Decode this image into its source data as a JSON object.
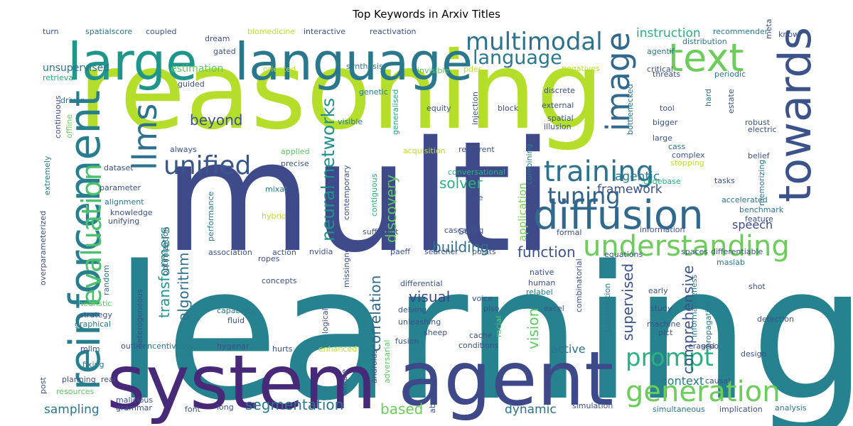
{
  "title": "Top Keywords in Arxiv Titles",
  "words": [
    {
      "text": "reasoning",
      "color": "#b5de2b"
    },
    {
      "text": "multi",
      "color": "#3e4a89"
    },
    {
      "text": "learning",
      "color": "#26828e"
    },
    {
      "text": "system",
      "color": "#482878"
    },
    {
      "text": "agent",
      "color": "#3e4989"
    },
    {
      "text": "large",
      "color": "#1f968b"
    },
    {
      "text": "language",
      "color": "#2a788e"
    },
    {
      "text": "reinforcement",
      "color": "#277f8e"
    },
    {
      "text": "towards",
      "color": "#3b528b"
    },
    {
      "text": "diffusion",
      "color": "#31688e"
    },
    {
      "text": "text",
      "color": "#6ccd5a"
    },
    {
      "text": "image",
      "color": "#31688e"
    },
    {
      "text": "llms",
      "color": "#2c728e"
    },
    {
      "text": "evaluation",
      "color": "#4ac16d"
    },
    {
      "text": "training",
      "color": "#2c728e"
    },
    {
      "text": "unified",
      "color": "#39568c"
    },
    {
      "text": "understanding",
      "color": "#6ccd5a"
    },
    {
      "text": "generation",
      "color": "#6ccd5a"
    },
    {
      "text": "multimodal",
      "color": "#2c728e"
    },
    {
      "text": "language",
      "color": "#2a788e"
    },
    {
      "text": "tuning",
      "color": "#33638d"
    },
    {
      "text": "prompt",
      "color": "#2ab07f"
    },
    {
      "text": "neural networks",
      "color": "#21918c"
    },
    {
      "text": "discovery",
      "color": "#5ec962"
    },
    {
      "text": "transformers",
      "color": "#1f968b"
    },
    {
      "text": "algorithm",
      "color": "#2c728e"
    },
    {
      "text": "correlation",
      "color": "#31688e"
    },
    {
      "text": "comprehensive",
      "color": "#3b528b"
    },
    {
      "text": "supervised",
      "color": "#3b528b"
    },
    {
      "text": "segmentation",
      "color": "#2a788e"
    },
    {
      "text": "visual",
      "color": "#3f4788"
    },
    {
      "text": "building",
      "color": "#2c728e"
    },
    {
      "text": "function",
      "color": "#3b528b"
    },
    {
      "text": "framework",
      "color": "#3b528b"
    },
    {
      "text": "agentic",
      "color": "#287d8e"
    },
    {
      "text": "solver",
      "color": "#2ab07f"
    },
    {
      "text": "beyond",
      "color": "#3b528b"
    },
    {
      "text": "vision",
      "color": "#5ec962"
    },
    {
      "text": "instruction",
      "color": "#2ab07f"
    },
    {
      "text": "sampling",
      "color": "#2a788e"
    },
    {
      "text": "based",
      "color": "#6ccd5a"
    },
    {
      "text": "dynamic",
      "color": "#2c728e"
    },
    {
      "text": "context",
      "color": "#2a788e"
    },
    {
      "text": "speech",
      "color": "#3e4989"
    },
    {
      "text": "active",
      "color": "#2c728e"
    },
    {
      "text": "self",
      "color": "#3b528b"
    },
    {
      "text": "application",
      "color": "#7ad151"
    },
    {
      "text": "unsupervised",
      "color": "#2c728e"
    },
    {
      "text": "estimation",
      "color": "#5ec962"
    },
    {
      "text": "spatialscore",
      "color": "#2a788e"
    },
    {
      "text": "coupled",
      "color": "#39568c"
    },
    {
      "text": "turn",
      "color": "#3b528b"
    },
    {
      "text": "retrieval",
      "color": "#22a884"
    },
    {
      "text": "driven",
      "color": "#2a788e"
    },
    {
      "text": "continuous",
      "color": "#3b528b"
    },
    {
      "text": "offline",
      "color": "#6ccd5a"
    },
    {
      "text": "guided",
      "color": "#3b528b"
    },
    {
      "text": "dream",
      "color": "#3b528b"
    },
    {
      "text": "gated",
      "color": "#3b528b"
    },
    {
      "text": "biomedicine",
      "color": "#bddf26"
    },
    {
      "text": "interactive",
      "color": "#3b528b"
    },
    {
      "text": "reactivation",
      "color": "#3b528b"
    },
    {
      "text": "oriented",
      "color": "#bddf26"
    },
    {
      "text": "synthesis",
      "color": "#2a788e"
    },
    {
      "text": "invisible",
      "color": "#5ec962"
    },
    {
      "text": "pdes",
      "color": "#bddf26"
    },
    {
      "text": "genetic",
      "color": "#2a788e"
    },
    {
      "text": "generalised",
      "color": "#22a884"
    },
    {
      "text": "equity",
      "color": "#3b528b"
    },
    {
      "text": "visible",
      "color": "#2c728e"
    },
    {
      "text": "injection",
      "color": "#3b528b"
    },
    {
      "text": "block",
      "color": "#3b528b"
    },
    {
      "text": "discrete",
      "color": "#3b528b"
    },
    {
      "text": "external",
      "color": "#3b528b"
    },
    {
      "text": "spatial",
      "color": "#3b528b"
    },
    {
      "text": "illusion",
      "color": "#3b528b"
    },
    {
      "text": "agentif",
      "color": "#2a788e"
    },
    {
      "text": "distribution",
      "color": "#2a788e"
    },
    {
      "text": "threats",
      "color": "#3b528b"
    },
    {
      "text": "negatives",
      "color": "#bddf26"
    },
    {
      "text": "critical",
      "color": "#3b528b"
    },
    {
      "text": "periodic",
      "color": "#2a788e"
    },
    {
      "text": "recommender",
      "color": "#2a788e"
    },
    {
      "text": "meta",
      "color": "#3b528b"
    },
    {
      "text": "know",
      "color": "#3b528b"
    },
    {
      "text": "bottlenecked",
      "color": "#2c728e"
    },
    {
      "text": "tool",
      "color": "#3b528b"
    },
    {
      "text": "bigger",
      "color": "#3b528b"
    },
    {
      "text": "large",
      "color": "#3b528b"
    },
    {
      "text": "hard",
      "color": "#2a788e"
    },
    {
      "text": "estate",
      "color": "#3b528b"
    },
    {
      "text": "robust",
      "color": "#3b528b"
    },
    {
      "text": "electric",
      "color": "#3b528b"
    },
    {
      "text": "cass",
      "color": "#2a788e"
    },
    {
      "text": "complex",
      "color": "#3b528b"
    },
    {
      "text": "stopping",
      "color": "#bddf26"
    },
    {
      "text": "belief",
      "color": "#3b528b"
    },
    {
      "text": "tasks",
      "color": "#3b528b"
    },
    {
      "text": "memorizing",
      "color": "#2a788e"
    },
    {
      "text": "feature",
      "color": "#3b528b"
    },
    {
      "text": "benchmark",
      "color": "#2a788e"
    },
    {
      "text": "codebase",
      "color": "#2ab07f"
    },
    {
      "text": "accelerated",
      "color": "#2a788e"
    },
    {
      "text": "combining",
      "color": "#2a788e"
    },
    {
      "text": "conversational",
      "color": "#2ab07f"
    },
    {
      "text": "recurrent",
      "color": "#3b528b"
    },
    {
      "text": "acquisition",
      "color": "#bddf26"
    },
    {
      "text": "applied",
      "color": "#5ec962"
    },
    {
      "text": "always",
      "color": "#3b528b"
    },
    {
      "text": "extremely",
      "color": "#2a788e"
    },
    {
      "text": "dataset",
      "color": "#3b528b"
    },
    {
      "text": "parameter",
      "color": "#3b528b"
    },
    {
      "text": "alignment",
      "color": "#2a788e"
    },
    {
      "text": "knowledge",
      "color": "#3b528b"
    },
    {
      "text": "unifying",
      "color": "#3b528b"
    },
    {
      "text": "overparameterized",
      "color": "#3b528b"
    },
    {
      "text": "random",
      "color": "#2a788e"
    },
    {
      "text": "heuristic",
      "color": "#5ec962"
    },
    {
      "text": "strategy",
      "color": "#3b528b"
    },
    {
      "text": "graphical",
      "color": "#2a788e"
    },
    {
      "text": "mllm",
      "color": "#3b528b"
    },
    {
      "text": "fixing",
      "color": "#2a788e"
    },
    {
      "text": "planning",
      "color": "#3b528b"
    },
    {
      "text": "post",
      "color": "#3b528b"
    },
    {
      "text": "resources",
      "color": "#5ec962"
    },
    {
      "text": "real",
      "color": "#3b528b"
    },
    {
      "text": "malicious",
      "color": "#3b528b"
    },
    {
      "text": "grammar",
      "color": "#3b528b"
    },
    {
      "text": "heterogeneous",
      "color": "#3b528b"
    },
    {
      "text": "optimization",
      "color": "#3b528b"
    },
    {
      "text": "performance",
      "color": "#2a788e"
    },
    {
      "text": "outlier",
      "color": "#3b528b"
    },
    {
      "text": "incentivizing",
      "color": "#2a788e"
    },
    {
      "text": "hygenar",
      "color": "#3b528b"
    },
    {
      "text": "hurts",
      "color": "#3b528b"
    },
    {
      "text": "enhanced",
      "color": "#bddf26"
    },
    {
      "text": "conditions",
      "color": "#3b528b"
    },
    {
      "text": "capability",
      "color": "#2a788e"
    },
    {
      "text": "fluid",
      "color": "#3b528b"
    },
    {
      "text": "precise",
      "color": "#3b528b"
    },
    {
      "text": "mixat",
      "color": "#2a788e"
    },
    {
      "text": "hybrid",
      "color": "#bddf26"
    },
    {
      "text": "nvidia",
      "color": "#3b528b"
    },
    {
      "text": "ropes",
      "color": "#3b528b"
    },
    {
      "text": "association",
      "color": "#3b528b"
    },
    {
      "text": "action",
      "color": "#3b528b"
    },
    {
      "text": "concepts",
      "color": "#3b528b"
    },
    {
      "text": "logical",
      "color": "#3b528b"
    },
    {
      "text": "missingness",
      "color": "#3b528b"
    },
    {
      "text": "contemporary",
      "color": "#3b528b"
    },
    {
      "text": "fine",
      "color": "#3b528b"
    },
    {
      "text": "contiguous",
      "color": "#2ab07f"
    },
    {
      "text": "sufficient",
      "color": "#3b528b"
    },
    {
      "text": "differential",
      "color": "#3b528b"
    },
    {
      "text": "delving",
      "color": "#3b528b"
    },
    {
      "text": "unleashing",
      "color": "#3b528b"
    },
    {
      "text": "fusion",
      "color": "#3b528b"
    },
    {
      "text": "abstraction",
      "color": "#3b528b"
    },
    {
      "text": "androids",
      "color": "#3b528b"
    },
    {
      "text": "adversarial",
      "color": "#5ec962"
    },
    {
      "text": "simple",
      "color": "#3b528b"
    },
    {
      "text": "font",
      "color": "#3b528b"
    },
    {
      "text": "long",
      "color": "#3b528b"
    },
    {
      "text": "paeff",
      "color": "#3b528b"
    },
    {
      "text": "searcher",
      "color": "#3b528b"
    },
    {
      "text": "points",
      "color": "#3b528b"
    },
    {
      "text": "cascading",
      "color": "#3b528b"
    },
    {
      "text": "face",
      "color": "#3b528b"
    },
    {
      "text": "voice",
      "color": "#3b528b"
    },
    {
      "text": "piso",
      "color": "#3b528b"
    },
    {
      "text": "racial",
      "color": "#5ec962"
    },
    {
      "text": "sheep",
      "color": "#3b528b"
    },
    {
      "text": "cache",
      "color": "#3b528b"
    },
    {
      "text": "human",
      "color": "#3b528b"
    },
    {
      "text": "relabel",
      "color": "#2a788e"
    },
    {
      "text": "native",
      "color": "#3b528b"
    },
    {
      "text": "excel",
      "color": "#3b528b"
    },
    {
      "text": "combinatorial",
      "color": "#3b528b"
    },
    {
      "text": "transpilation",
      "color": "#2a788e"
    },
    {
      "text": "formal",
      "color": "#3b528b"
    },
    {
      "text": "equations",
      "color": "#3b528b"
    },
    {
      "text": "information",
      "color": "#3b528b"
    },
    {
      "text": "spaces",
      "color": "#3b528b"
    },
    {
      "text": "differentiable",
      "color": "#3b528b"
    },
    {
      "text": "maslab",
      "color": "#2a788e"
    },
    {
      "text": "early",
      "color": "#3b528b"
    },
    {
      "text": "study",
      "color": "#3b528b"
    },
    {
      "text": "machine",
      "color": "#3b528b"
    },
    {
      "text": "pict",
      "color": "#3b528b"
    },
    {
      "text": "informativeness",
      "color": "#2a788e"
    },
    {
      "text": "propagation",
      "color": "#2a788e"
    },
    {
      "text": "shot",
      "color": "#3b528b"
    },
    {
      "text": "detection",
      "color": "#3b528b"
    },
    {
      "text": "erased",
      "color": "#3b528b"
    },
    {
      "text": "grpo",
      "color": "#3b528b"
    },
    {
      "text": "design",
      "color": "#3b528b"
    },
    {
      "text": "causal",
      "color": "#3b528b"
    },
    {
      "text": "simultaneous",
      "color": "#2a788e"
    },
    {
      "text": "implication",
      "color": "#3b528b"
    },
    {
      "text": "analysis",
      "color": "#2a788e"
    },
    {
      "text": "simulation",
      "color": "#3b528b"
    }
  ]
}
